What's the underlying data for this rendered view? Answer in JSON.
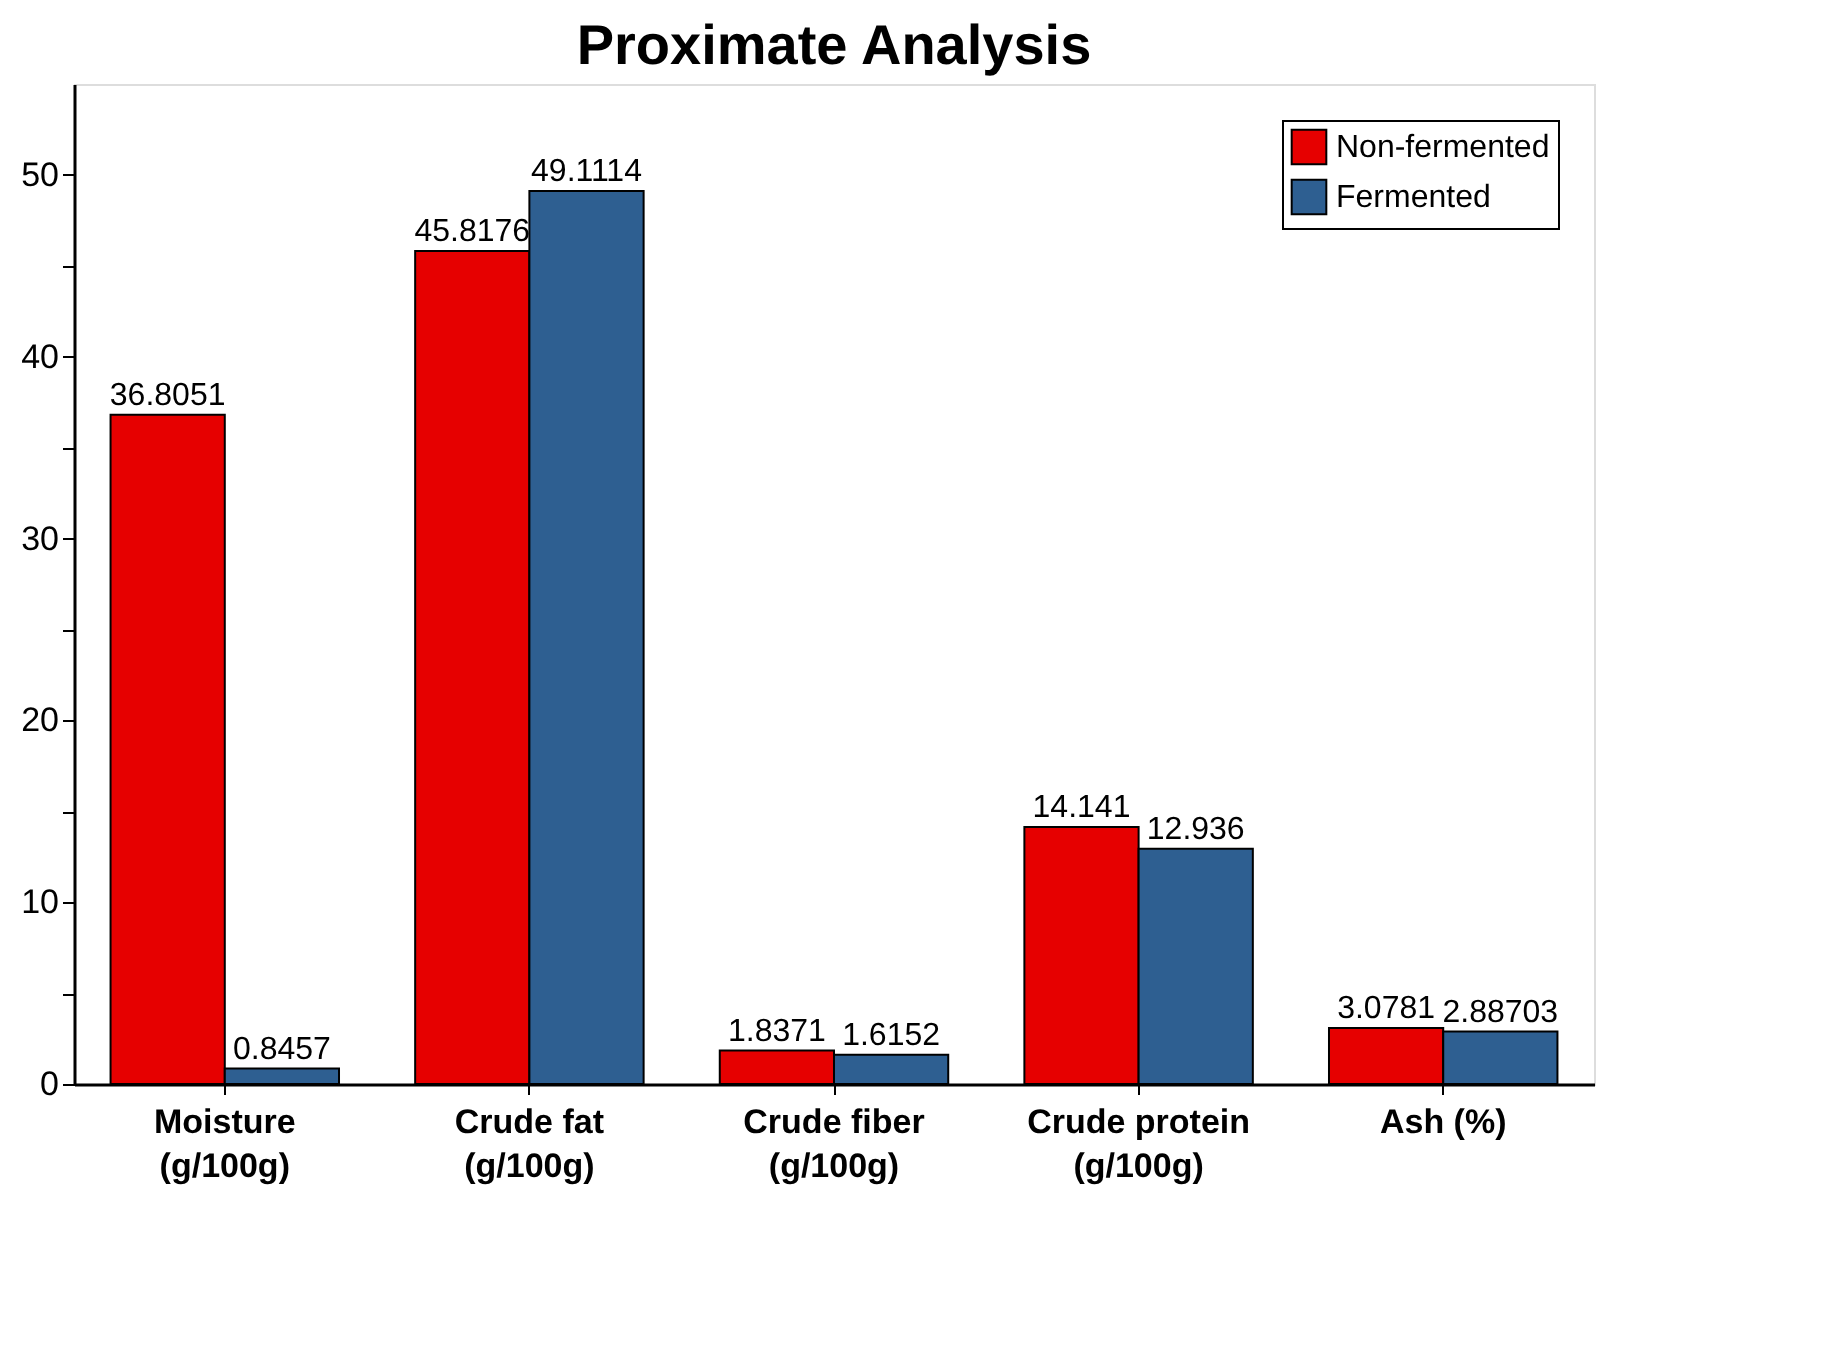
{
  "chart_data": {
    "type": "bar",
    "title": "Proximate Analysis",
    "categories": [
      "Moisture\n(g/100g)",
      "Crude fat\n(g/100g)",
      "Crude fiber\n(g/100g)",
      "Crude protein\n(g/100g)",
      "Ash (%)"
    ],
    "series": [
      {
        "name": "Non-fermented",
        "color": "#e60000",
        "values": [
          36.8051,
          45.8176,
          1.8371,
          14.141,
          3.0781
        ]
      },
      {
        "name": "Fermented",
        "color": "#2e5f91",
        "values": [
          0.8457,
          49.1114,
          1.6152,
          12.936,
          2.88703
        ]
      }
    ],
    "ylim": [
      0,
      55
    ],
    "yticks": [
      0,
      {
        "value": 5,
        "label": null
      },
      10,
      {
        "value": 15,
        "label": null
      },
      20,
      {
        "value": 25,
        "label": null
      },
      30,
      {
        "value": 35,
        "label": null
      },
      40,
      {
        "value": 45,
        "label": null
      },
      50
    ],
    "data_labels": true,
    "grid": false,
    "legend": "top right"
  }
}
